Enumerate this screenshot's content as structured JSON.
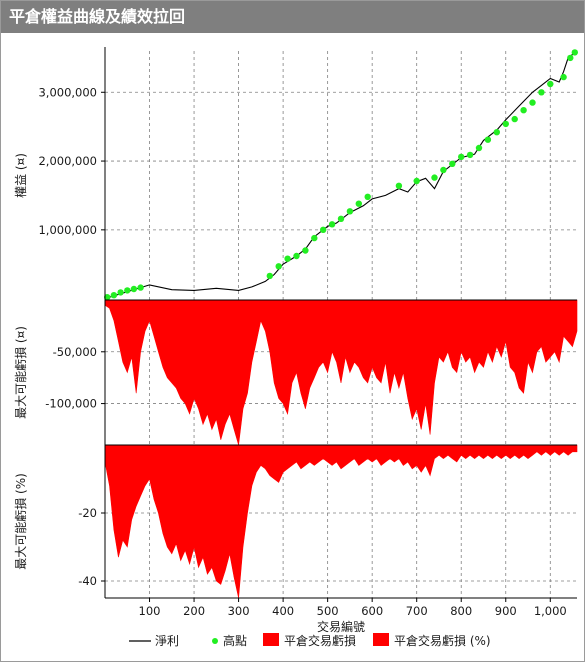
{
  "window": {
    "title": "平倉權益曲線及績效拉回"
  },
  "colors": {
    "equity": "#000000",
    "highs": "#22ee22",
    "drawdown": "#ff0000",
    "grid": "#808080"
  },
  "chart_data": [
    {
      "type": "line",
      "ylabel": "權益 (¤)",
      "xlim": [
        0,
        1060
      ],
      "ylim": [
        -20000,
        3600000
      ],
      "yticks": [
        1000000,
        2000000,
        3000000
      ],
      "ytick_labels": [
        "1,000,000",
        "2,000,000",
        "3,000,000"
      ],
      "series": [
        {
          "name": "淨利",
          "type": "line",
          "x": [
            0,
            50,
            100,
            150,
            200,
            250,
            300,
            330,
            360,
            380,
            400,
            430,
            450,
            470,
            500,
            520,
            550,
            580,
            600,
            630,
            660,
            680,
            700,
            720,
            740,
            760,
            780,
            800,
            830,
            850,
            880,
            900,
            930,
            960,
            980,
            1000,
            1020,
            1030,
            1040,
            1050,
            1060
          ],
          "y": [
            0,
            100000,
            200000,
            130000,
            120000,
            150000,
            120000,
            170000,
            250000,
            350000,
            500000,
            620000,
            720000,
            900000,
            1050000,
            1100000,
            1250000,
            1350000,
            1450000,
            1500000,
            1600000,
            1550000,
            1700000,
            1750000,
            1600000,
            1850000,
            1950000,
            2050000,
            2100000,
            2300000,
            2450000,
            2600000,
            2800000,
            3000000,
            3100000,
            3200000,
            3150000,
            3300000,
            3500000,
            3550000,
            3600000
          ]
        },
        {
          "name": "高點",
          "type": "scatter",
          "x": [
            5,
            20,
            35,
            50,
            65,
            80,
            370,
            390,
            410,
            430,
            450,
            470,
            490,
            510,
            530,
            550,
            570,
            590,
            660,
            700,
            740,
            760,
            780,
            800,
            820,
            840,
            860,
            880,
            900,
            920,
            940,
            960,
            980,
            1000,
            1030,
            1045,
            1055
          ],
          "y": [
            20000,
            50000,
            90000,
            120000,
            140000,
            160000,
            330000,
            470000,
            580000,
            620000,
            700000,
            880000,
            1000000,
            1080000,
            1160000,
            1270000,
            1380000,
            1480000,
            1640000,
            1710000,
            1760000,
            1870000,
            1960000,
            2060000,
            2090000,
            2190000,
            2310000,
            2420000,
            2540000,
            2610000,
            2740000,
            2850000,
            3000000,
            3120000,
            3220000,
            3500000,
            3580000
          ]
        }
      ]
    },
    {
      "type": "area",
      "ylabel": "最大可能虧損 (¤)",
      "xlim": [
        0,
        1060
      ],
      "ylim": [
        -140000,
        0
      ],
      "yticks": [
        -50000,
        -100000
      ],
      "ytick_labels": [
        "-50,000",
        "-100,000"
      ],
      "series": [
        {
          "name": "平倉交易虧損",
          "x": [
            0,
            10,
            20,
            30,
            40,
            50,
            60,
            70,
            80,
            90,
            100,
            110,
            120,
            130,
            140,
            150,
            160,
            170,
            180,
            190,
            200,
            210,
            220,
            230,
            240,
            250,
            260,
            270,
            280,
            290,
            300,
            310,
            320,
            330,
            340,
            350,
            360,
            370,
            380,
            390,
            400,
            410,
            420,
            430,
            440,
            450,
            460,
            470,
            480,
            490,
            500,
            510,
            520,
            530,
            540,
            550,
            560,
            570,
            580,
            590,
            600,
            610,
            620,
            630,
            640,
            650,
            660,
            670,
            680,
            690,
            700,
            710,
            720,
            730,
            740,
            750,
            760,
            770,
            780,
            790,
            800,
            810,
            820,
            830,
            840,
            850,
            860,
            870,
            880,
            890,
            900,
            910,
            920,
            930,
            940,
            950,
            960,
            970,
            980,
            990,
            1000,
            1010,
            1020,
            1030,
            1040,
            1050,
            1060
          ],
          "y": [
            -5000,
            -8000,
            -20000,
            -40000,
            -60000,
            -70000,
            -55000,
            -90000,
            -50000,
            -30000,
            -20000,
            -35000,
            -50000,
            -65000,
            -75000,
            -80000,
            -85000,
            -95000,
            -100000,
            -110000,
            -95000,
            -105000,
            -120000,
            -110000,
            -125000,
            -115000,
            -135000,
            -120000,
            -110000,
            -125000,
            -140000,
            -105000,
            -90000,
            -60000,
            -40000,
            -20000,
            -30000,
            -50000,
            -80000,
            -95000,
            -100000,
            -110000,
            -80000,
            -70000,
            -90000,
            -105000,
            -85000,
            -75000,
            -65000,
            -60000,
            -70000,
            -50000,
            -60000,
            -80000,
            -55000,
            -70000,
            -60000,
            -65000,
            -75000,
            -80000,
            -65000,
            -75000,
            -80000,
            -60000,
            -90000,
            -70000,
            -85000,
            -70000,
            -95000,
            -115000,
            -105000,
            -125000,
            -100000,
            -130000,
            -80000,
            -55000,
            -60000,
            -50000,
            -65000,
            -70000,
            -50000,
            -60000,
            -55000,
            -70000,
            -60000,
            -65000,
            -50000,
            -60000,
            -45000,
            -55000,
            -40000,
            -65000,
            -70000,
            -85000,
            -90000,
            -60000,
            -70000,
            -50000,
            -45000,
            -60000,
            -55000,
            -50000,
            -60000,
            -35000,
            -40000,
            -45000,
            -30000
          ]
        }
      ]
    },
    {
      "type": "area",
      "ylabel": "最大可能虧損 (%)",
      "xlim": [
        0,
        1060
      ],
      "ylim": [
        -45,
        0
      ],
      "yticks": [
        -20,
        -40
      ],
      "ytick_labels": [
        "-20",
        "-40"
      ],
      "series": [
        {
          "name": "平倉交易虧損 (%)",
          "x": [
            0,
            10,
            20,
            30,
            40,
            50,
            60,
            70,
            80,
            90,
            100,
            110,
            120,
            130,
            140,
            150,
            160,
            170,
            180,
            190,
            200,
            210,
            220,
            230,
            240,
            250,
            260,
            270,
            280,
            290,
            300,
            310,
            320,
            330,
            340,
            350,
            360,
            370,
            380,
            390,
            400,
            410,
            420,
            430,
            440,
            450,
            460,
            470,
            480,
            490,
            500,
            510,
            520,
            530,
            540,
            550,
            560,
            570,
            580,
            590,
            600,
            610,
            620,
            630,
            640,
            650,
            660,
            670,
            680,
            690,
            700,
            710,
            720,
            730,
            740,
            750,
            760,
            770,
            780,
            790,
            800,
            810,
            820,
            830,
            840,
            850,
            860,
            870,
            880,
            890,
            900,
            910,
            920,
            930,
            940,
            950,
            960,
            970,
            980,
            990,
            1000,
            1010,
            1020,
            1030,
            1040,
            1050,
            1060
          ],
          "y": [
            -5,
            -12,
            -25,
            -33,
            -28,
            -30,
            -22,
            -18,
            -15,
            -12,
            -10,
            -16,
            -20,
            -26,
            -30,
            -32,
            -29,
            -34,
            -31,
            -35,
            -30,
            -36,
            -33,
            -38,
            -36,
            -40,
            -41,
            -37,
            -32,
            -39,
            -45,
            -30,
            -20,
            -12,
            -8,
            -6,
            -7,
            -9,
            -10,
            -11,
            -8,
            -7,
            -6,
            -5,
            -7,
            -6,
            -5,
            -6,
            -5,
            -4,
            -5,
            -6,
            -5,
            -7,
            -6,
            -5,
            -4,
            -6,
            -5,
            -4,
            -5,
            -4,
            -6,
            -5,
            -4,
            -5,
            -4,
            -6,
            -5,
            -7,
            -6,
            -8,
            -6,
            -9,
            -4,
            -3,
            -4,
            -3,
            -4,
            -5,
            -3,
            -4,
            -3,
            -4,
            -3,
            -4,
            -3,
            -4,
            -3,
            -4,
            -3,
            -4,
            -3,
            -4,
            -3,
            -4,
            -3,
            -2,
            -3,
            -2,
            -3,
            -2,
            -3,
            -2,
            -3,
            -2,
            -2
          ]
        }
      ]
    }
  ],
  "x_axis": {
    "label": "交易編號",
    "ticks": [
      100,
      200,
      300,
      400,
      500,
      600,
      700,
      800,
      900,
      1000
    ],
    "tick_labels": [
      "100",
      "200",
      "300",
      "400",
      "500",
      "600",
      "700",
      "800",
      "900",
      "1,000"
    ]
  },
  "legend": {
    "position": "bottom",
    "items": [
      {
        "label": "淨利",
        "symbol": "line",
        "color": "#000000"
      },
      {
        "label": "高點",
        "symbol": "dot",
        "color": "#22ee22"
      },
      {
        "label": "平倉交易虧損",
        "symbol": "box",
        "color": "#ff0000"
      },
      {
        "label": "平倉交易虧損 (%)",
        "symbol": "box",
        "color": "#ff0000"
      }
    ]
  }
}
